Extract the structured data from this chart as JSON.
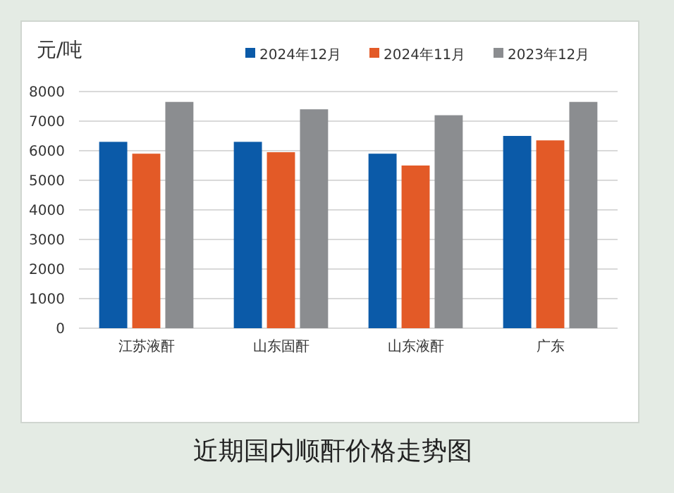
{
  "chart_data": {
    "type": "bar",
    "ylabel": "元/吨",
    "annotations": [
      "近期国内顺酐价格走势图"
    ],
    "categories": [
      "江苏液酐",
      "山东固酐",
      "山东液酐",
      "广东"
    ],
    "series": [
      {
        "name": "2024年12月",
        "color": "#0b5aa8",
        "values": [
          6300,
          6300,
          5900,
          6500
        ]
      },
      {
        "name": "2024年11月",
        "color": "#e35a27",
        "values": [
          5900,
          5950,
          5500,
          6350
        ]
      },
      {
        "name": "2023年12月",
        "color": "#8b8d90",
        "values": [
          7650,
          7400,
          7200,
          7650
        ]
      }
    ],
    "ylim": [
      0,
      8000
    ],
    "yticks": [
      0,
      1000,
      2000,
      3000,
      4000,
      5000,
      6000,
      7000,
      8000
    ],
    "grid": "y",
    "legend": "top right"
  }
}
